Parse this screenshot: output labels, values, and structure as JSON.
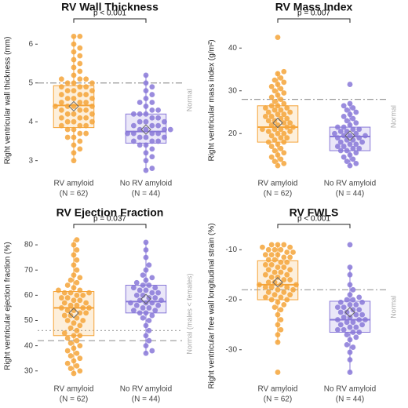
{
  "chart_data": [
    {
      "type": "box",
      "title": "RV Wall Thickness",
      "ylabel": "Right ventricular wall thickness (mm)",
      "annotation": "p < 0.001",
      "categories": [
        "RV amyloid",
        "No RV amyloid"
      ],
      "n_labels": [
        "(N = 62)",
        "(N = 44)"
      ],
      "ylim": [
        2.65,
        6.45
      ],
      "yticks": [
        3,
        4,
        5,
        6
      ],
      "reference_lines": [
        {
          "value": 5,
          "style": "dashdot"
        }
      ],
      "reference_label": "Normal",
      "groups": [
        {
          "color": "#f5a43a",
          "whisker_low": 3.0,
          "q1": 3.85,
          "median": 4.42,
          "q3": 4.93,
          "whisker_high": 6.2,
          "mean": 4.4,
          "points": [
            3.0,
            3.2,
            3.3,
            3.4,
            3.5,
            3.6,
            3.6,
            3.7,
            3.7,
            3.8,
            3.8,
            3.9,
            3.9,
            3.9,
            4.0,
            4.0,
            4.0,
            4.1,
            4.1,
            4.1,
            4.2,
            4.2,
            4.2,
            4.3,
            4.3,
            4.3,
            4.4,
            4.4,
            4.4,
            4.4,
            4.5,
            4.5,
            4.5,
            4.6,
            4.6,
            4.6,
            4.7,
            4.7,
            4.7,
            4.8,
            4.8,
            4.8,
            4.9,
            4.9,
            4.9,
            5.0,
            5.0,
            5.0,
            5.1,
            5.1,
            5.1,
            5.2,
            5.3,
            5.4,
            5.5,
            5.6,
            5.7,
            5.8,
            5.9,
            6.0,
            6.2,
            6.2
          ]
        },
        {
          "color": "#8878d8",
          "whisker_low": 2.75,
          "q1": 3.45,
          "median": 3.75,
          "q3": 4.2,
          "whisker_high": 5.2,
          "mean": 3.8,
          "points": [
            2.75,
            2.8,
            3.0,
            3.1,
            3.2,
            3.3,
            3.4,
            3.4,
            3.5,
            3.5,
            3.5,
            3.6,
            3.6,
            3.6,
            3.7,
            3.7,
            3.7,
            3.7,
            3.8,
            3.8,
            3.8,
            3.8,
            3.9,
            3.9,
            3.9,
            4.0,
            4.0,
            4.0,
            4.1,
            4.1,
            4.2,
            4.2,
            4.2,
            4.3,
            4.3,
            4.4,
            4.5,
            4.5,
            4.6,
            4.7,
            4.8,
            4.9,
            5.0,
            5.2
          ]
        }
      ]
    },
    {
      "type": "box",
      "title": "RV Mass Index",
      "ylabel": "Right ventricular mass index (g/m²)",
      "annotation": "p = 0.007",
      "categories": [
        "RV amyloid",
        "No RV amyloid"
      ],
      "n_labels": [
        "(N = 62)",
        "(N = 44)"
      ],
      "ylim": [
        10.5,
        45
      ],
      "yticks": [
        20,
        30,
        40
      ],
      "reference_lines": [
        {
          "value": 28,
          "style": "dashdot"
        }
      ],
      "reference_label": "Normal",
      "groups": [
        {
          "color": "#f5a43a",
          "whisker_low": 12.5,
          "q1": 18,
          "median": 21.5,
          "q3": 26.5,
          "whisker_high": 34.5,
          "mean": 22.5,
          "points": [
            12.5,
            13,
            13.5,
            14,
            14.5,
            15,
            15.5,
            16,
            16.5,
            17,
            17.5,
            18,
            18,
            18.5,
            19,
            19,
            19.5,
            20,
            20,
            20.5,
            20.5,
            21,
            21,
            21,
            21.5,
            21.5,
            22,
            22,
            22.5,
            22.5,
            23,
            23,
            23.5,
            23.5,
            24,
            24,
            24.5,
            24.5,
            25,
            25,
            25.5,
            25.5,
            26,
            26,
            26.5,
            26.5,
            27,
            27.5,
            28,
            28.5,
            29,
            29.5,
            30,
            30.5,
            31,
            31.5,
            32,
            32.5,
            33,
            34,
            34.5,
            42.5
          ]
        },
        {
          "color": "#8878d8",
          "whisker_low": 12.5,
          "q1": 16,
          "median": 19.3,
          "q3": 21.5,
          "whisker_high": 27,
          "mean": 19.5,
          "points": [
            12.5,
            13,
            13.5,
            14,
            14.5,
            15,
            15.5,
            16,
            16,
            16.5,
            16.5,
            17,
            17,
            17.5,
            17.5,
            18,
            18,
            18.5,
            18.5,
            19,
            19,
            19.5,
            19.5,
            19.5,
            20,
            20,
            20.5,
            20.5,
            21,
            21,
            21.5,
            21.5,
            22,
            22.5,
            23,
            23.5,
            24,
            24.5,
            25,
            25.5,
            26,
            26.5,
            27,
            31.5
          ]
        }
      ]
    },
    {
      "type": "box",
      "title": "RV Ejection Fraction",
      "ylabel": "Right ventricular ejection fraction (%)",
      "annotation": "p = 0.037",
      "categories": [
        "RV amyloid",
        "No RV amyloid"
      ],
      "n_labels": [
        "(N = 62)",
        "(N = 44)"
      ],
      "ylim": [
        26.5,
        85
      ],
      "yticks": [
        30,
        40,
        50,
        60,
        70,
        80
      ],
      "reference_lines": [
        {
          "value": 42,
          "style": "dashed"
        },
        {
          "value": 46,
          "style": "dotted"
        }
      ],
      "reference_label": "Normal (males < females)",
      "groups": [
        {
          "color": "#f5a43a",
          "whisker_low": 29,
          "q1": 44,
          "median": 55,
          "q3": 61.5,
          "whisker_high": 82,
          "mean": 53,
          "points": [
            29,
            30,
            31,
            32,
            33,
            34,
            35,
            36,
            37,
            38,
            39,
            40,
            41,
            42,
            43,
            44,
            44,
            45,
            46,
            47,
            48,
            49,
            50,
            50,
            51,
            52,
            52,
            53,
            53,
            54,
            54,
            55,
            55,
            55,
            56,
            56,
            57,
            57,
            58,
            58,
            59,
            59,
            60,
            60,
            61,
            61,
            61,
            62,
            62,
            63,
            64,
            65,
            66,
            67,
            68,
            70,
            72,
            74,
            76,
            78,
            80,
            82
          ]
        },
        {
          "color": "#8878d8",
          "whisker_low": 37,
          "q1": 53,
          "median": 57.5,
          "q3": 64,
          "whisker_high": 81,
          "mean": 58.5,
          "points": [
            37,
            38,
            40,
            42,
            44,
            46,
            48,
            50,
            51,
            52,
            53,
            53,
            54,
            54,
            55,
            55,
            56,
            56,
            57,
            57,
            57,
            58,
            58,
            59,
            59,
            60,
            60,
            61,
            61,
            62,
            62,
            63,
            63,
            64,
            64,
            65,
            66,
            67,
            68,
            70,
            72,
            75,
            78,
            81
          ]
        }
      ]
    },
    {
      "type": "box",
      "title": "RV FWLS",
      "ylabel": "Right ventricular free wall longitudinal strain (%)",
      "annotation": "p < 0.001",
      "categories": [
        "RV amyloid",
        "No RV amyloid"
      ],
      "n_labels": [
        "(N = 62)",
        "(N = 44)"
      ],
      "ylim": [
        -36,
        -6.5
      ],
      "yticks": [
        -30,
        -20,
        -10
      ],
      "reference_lines": [
        {
          "value": -18,
          "style": "dashdot"
        }
      ],
      "reference_label": "Normal",
      "groups": [
        {
          "color": "#f5a43a",
          "whisker_low": -28.5,
          "q1": -20,
          "median": -17,
          "q3": -12.2,
          "whisker_high": -9,
          "mean": -16.5,
          "points": [
            -34.5,
            -28.5,
            -27,
            -26,
            -25,
            -24,
            -23,
            -22,
            -21.5,
            -21,
            -20.5,
            -20,
            -20,
            -19.5,
            -19.5,
            -19,
            -19,
            -18.5,
            -18.5,
            -18,
            -18,
            -17.5,
            -17.5,
            -17.5,
            -17,
            -17,
            -17,
            -16.5,
            -16.5,
            -16,
            -16,
            -15.5,
            -15.5,
            -15,
            -15,
            -14.5,
            -14.5,
            -14,
            -14,
            -13.5,
            -13.5,
            -13,
            -13,
            -12.5,
            -12.5,
            -12,
            -12,
            -11.5,
            -11.5,
            -11,
            -11,
            -11,
            -10.5,
            -10.5,
            -10,
            -10,
            -10,
            -9.5,
            -9.5,
            -9,
            -9,
            -9
          ]
        },
        {
          "color": "#8878d8",
          "whisker_low": -34.5,
          "q1": -26.5,
          "median": -24,
          "q3": -20.3,
          "whisker_high": -13.5,
          "mean": -22.5,
          "points": [
            -34.5,
            -32,
            -30.5,
            -29.5,
            -29,
            -28,
            -27.5,
            -27,
            -26.5,
            -26.5,
            -26,
            -26,
            -25.5,
            -25.5,
            -25,
            -25,
            -24.5,
            -24.5,
            -24,
            -24,
            -24,
            -23.5,
            -23.5,
            -23,
            -23,
            -22.5,
            -22.5,
            -22,
            -22,
            -21.5,
            -21.5,
            -21,
            -21,
            -20.5,
            -20.5,
            -20,
            -20,
            -19.5,
            -19,
            -18,
            -17,
            -15,
            -13.5,
            -9
          ]
        }
      ]
    }
  ]
}
